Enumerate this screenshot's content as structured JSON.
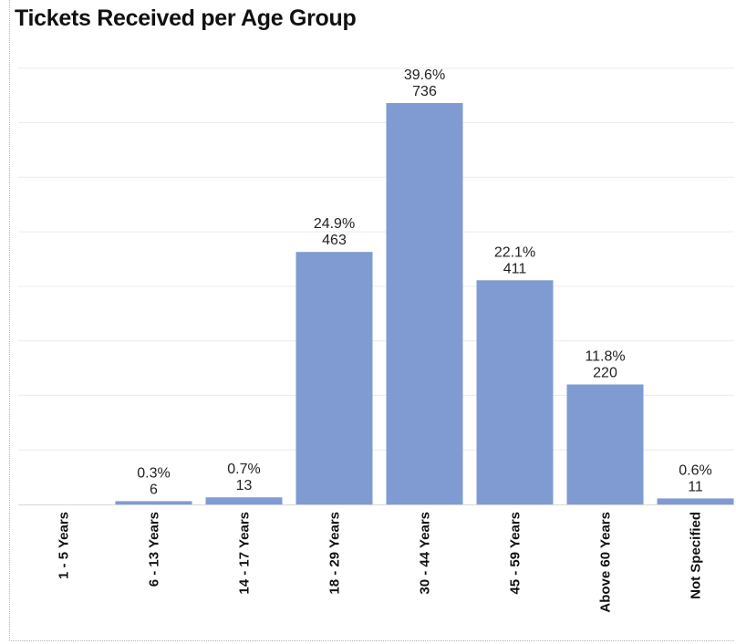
{
  "chart_data": {
    "type": "bar",
    "title": "Tickets Received per Age Group",
    "xlabel": "",
    "ylabel": "",
    "ylim": [
      0,
      800
    ],
    "grid": true,
    "categories": [
      "1 - 5 Years",
      "6 - 13 Years",
      "14 - 17 Years",
      "18 - 29 Years",
      "30 - 44 Years",
      "45 - 59 Years",
      "Above 60 Years",
      "Not Specified"
    ],
    "values": [
      0,
      6,
      13,
      463,
      736,
      411,
      220,
      11
    ],
    "value_labels": [
      "",
      "6",
      "13",
      "463",
      "736",
      "411",
      "220",
      "11"
    ],
    "percent_labels": [
      "",
      "0.3%",
      "0.7%",
      "24.9%",
      "39.6%",
      "22.1%",
      "11.8%",
      "0.6%"
    ],
    "bar_color": "#7f9bd1"
  }
}
